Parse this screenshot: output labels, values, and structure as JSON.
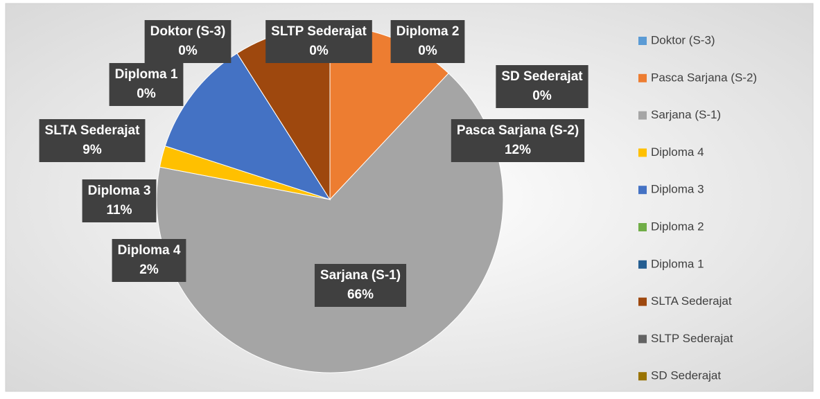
{
  "chart_data": {
    "type": "pie",
    "categories": [
      "Doktor (S-3)",
      "Pasca Sarjana (S-2)",
      "Sarjana (S-1)",
      "Diploma 4",
      "Diploma 3",
      "Diploma 2",
      "Diploma 1",
      "SLTA Sederajat",
      "SLTP Sederajat",
      "SD Sederajat"
    ],
    "values": [
      0,
      12,
      66,
      2,
      11,
      0,
      0,
      9,
      0,
      0
    ],
    "value_labels": [
      "0%",
      "12%",
      "66%",
      "2%",
      "11%",
      "0%",
      "0%",
      "9%",
      "0%",
      "0%"
    ],
    "colors": [
      "#5b9bd5",
      "#ed7d31",
      "#a5a5a5",
      "#ffc000",
      "#4472c4",
      "#70ad47",
      "#255e91",
      "#9e480e",
      "#636363",
      "#997300"
    ],
    "legend": "right"
  }
}
